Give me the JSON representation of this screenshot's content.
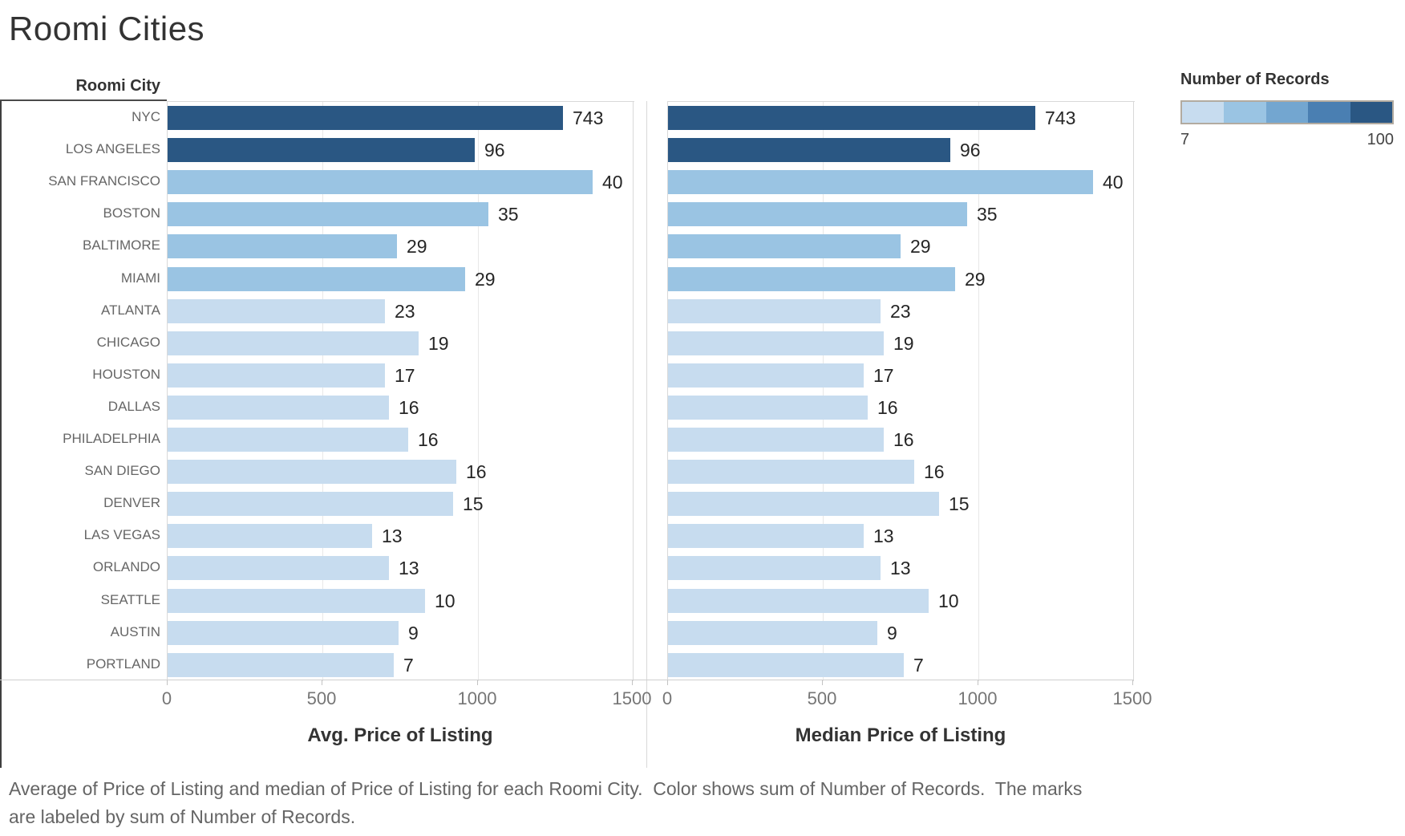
{
  "title": "Roomi Cities",
  "row_header": "Roomi City",
  "legend": {
    "title": "Number of Records",
    "min_label": "7",
    "max_label": "100",
    "min": 7,
    "max": 100,
    "step_colors": [
      "#c7dcef",
      "#9ac4e3",
      "#73a6d0",
      "#4a7fb2",
      "#2a5783"
    ]
  },
  "axes": {
    "left_title": "Avg. Price of Listing",
    "right_title": "Median Price of Listing",
    "tick_values": [
      0,
      500,
      1000,
      1500
    ],
    "range": [
      0,
      1500
    ]
  },
  "caption": {
    "line1": "Average of Price of Listing and median of Price of Listing for each Roomi City.  Color shows sum of Number of Records.  The marks",
    "line2": "are labeled by sum of Number of Records."
  },
  "chart_data": {
    "type": "bar",
    "orientation": "horizontal",
    "categories": [
      "NYC",
      "LOS ANGELES",
      "SAN FRANCISCO",
      "BOSTON",
      "BALTIMORE",
      "MIAMI",
      "ATLANTA",
      "CHICAGO",
      "HOUSTON",
      "DALLAS",
      "PHILADELPHIA",
      "SAN DIEGO",
      "DENVER",
      "LAS VEGAS",
      "ORLANDO",
      "SEATTLE",
      "AUSTIN",
      "PORTLAND"
    ],
    "series": [
      {
        "name": "Avg. Price of Listing",
        "values": [
          1275,
          990,
          1370,
          1035,
          740,
          960,
          700,
          810,
          700,
          715,
          775,
          930,
          920,
          660,
          715,
          830,
          745,
          730
        ]
      },
      {
        "name": "Median Price of Listing",
        "values": [
          1185,
          910,
          1370,
          965,
          750,
          925,
          685,
          695,
          630,
          645,
          695,
          795,
          875,
          630,
          685,
          840,
          675,
          760
        ]
      }
    ],
    "mark_labels_number_of_records": [
      743,
      96,
      40,
      35,
      29,
      29,
      23,
      19,
      17,
      16,
      16,
      16,
      15,
      13,
      13,
      10,
      9,
      7
    ],
    "color_encoding": "sum of Number of Records, 5 stepped blues from 7 to 100 (values above max clamp to darkest)",
    "xlim": [
      0,
      1500
    ],
    "grid": "vertical light gridlines at 500 intervals",
    "legend_position": "top-right"
  }
}
